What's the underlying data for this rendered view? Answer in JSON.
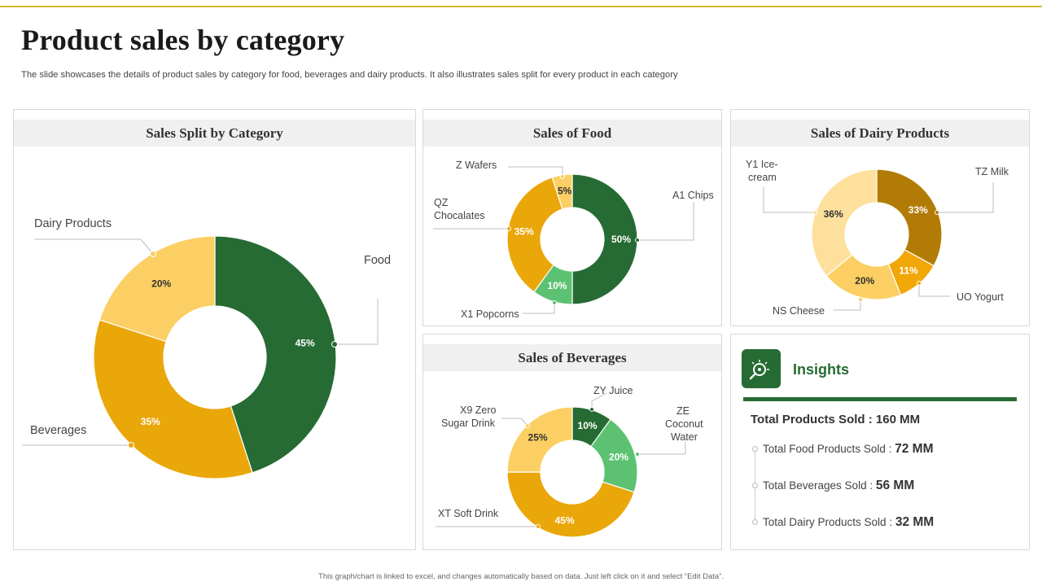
{
  "page": {
    "title": "Product sales by category",
    "subtitle": "The slide showcases the details of product sales by category for food, beverages and dairy products. It also illustrates sales split for every product in each category",
    "footer": "This graph/chart is linked to excel, and changes automatically based on data. Just left click on it and select “Edit Data”."
  },
  "colors": {
    "dark_green": "#266b33",
    "light_green": "#5cc272",
    "gold": "#eaa70a",
    "light_yellow": "#fbcf63",
    "pale_yellow": "#fde09b",
    "brown": "#b27b06",
    "amber": "#f1a708",
    "white": "#ffffff",
    "text": "#333333"
  },
  "chart_data": [
    {
      "id": "category",
      "type": "pie",
      "title": "Sales Split by Category",
      "categories": [
        "Food",
        "Beverages",
        "Dairy Products"
      ],
      "values": [
        45,
        35,
        20
      ],
      "labels": [
        "45%",
        "35%",
        "20%"
      ],
      "colors": [
        "#266b33",
        "#eaa70a",
        "#fbcf63"
      ],
      "text_colors": [
        "#ffffff",
        "#ffffff",
        "#333333"
      ]
    },
    {
      "id": "food",
      "type": "pie",
      "title": "Sales of Food",
      "categories": [
        "A1 Chips",
        "X1 Popcorns",
        "QZ Chocalates",
        "Z Wafers"
      ],
      "values": [
        50,
        10,
        35,
        5
      ],
      "labels": [
        "50%",
        "10%",
        "35%",
        "5%"
      ],
      "colors": [
        "#266b33",
        "#5cc272",
        "#eaa70a",
        "#fbcf63"
      ],
      "text_colors": [
        "#ffffff",
        "#ffffff",
        "#ffffff",
        "#333333"
      ]
    },
    {
      "id": "dairy",
      "type": "pie",
      "title": "Sales of Dairy Products",
      "categories": [
        "TZ Milk",
        "UO Yogurt",
        "NS Cheese",
        "Y1 Ice-cream"
      ],
      "values": [
        33,
        11,
        20,
        36
      ],
      "labels": [
        "33%",
        "11%",
        "20%",
        "36%"
      ],
      "colors": [
        "#b27b06",
        "#f1a708",
        "#fbcf63",
        "#fde09b"
      ],
      "text_colors": [
        "#ffffff",
        "#ffffff",
        "#333333",
        "#333333"
      ]
    },
    {
      "id": "beverages",
      "type": "pie",
      "title": "Sales of Beverages",
      "categories": [
        "ZY Juice",
        "ZE Coconut Water",
        "XT Soft Drink",
        "X9 Zero Sugar Drink"
      ],
      "values": [
        10,
        20,
        45,
        25
      ],
      "labels": [
        "10%",
        "20%",
        "45%",
        "25%"
      ],
      "colors": [
        "#266b33",
        "#5cc272",
        "#eaa70a",
        "#fbcf63"
      ],
      "text_colors": [
        "#ffffff",
        "#ffffff",
        "#ffffff",
        "#333333"
      ]
    }
  ],
  "insights": {
    "title": "Insights",
    "icon": "idea-search-icon",
    "total_label": "Total Products Sold :",
    "total_value": "160 MM",
    "items": [
      {
        "label": "Total Food Products Sold :",
        "value": "72 MM"
      },
      {
        "label": "Total Beverages  Sold :",
        "value": "56 MM"
      },
      {
        "label": "Total Dairy Products Sold :",
        "value": "32 MM"
      }
    ]
  },
  "callouts": {
    "category": {
      "food": "Food",
      "beverages": "Beverages",
      "dairy": "Dairy Products"
    },
    "food": {
      "a1": "A1 Chips",
      "x1": "X1 Popcorns",
      "qz_1": "QZ",
      "qz_2": "Chocalates",
      "z": "Z Wafers"
    },
    "dairy": {
      "tz": "TZ Milk",
      "uo": "UO Yogurt",
      "ns": "NS Cheese",
      "y1_1": "Y1 Ice-",
      "y1_2": "cream"
    },
    "beverages": {
      "zy": "ZY Juice",
      "ze_1": "ZE",
      "ze_2": "Coconut",
      "ze_3": "Water",
      "xt": "XT  Soft Drink",
      "x9_1": "X9 Zero",
      "x9_2": "Sugar Drink"
    }
  }
}
